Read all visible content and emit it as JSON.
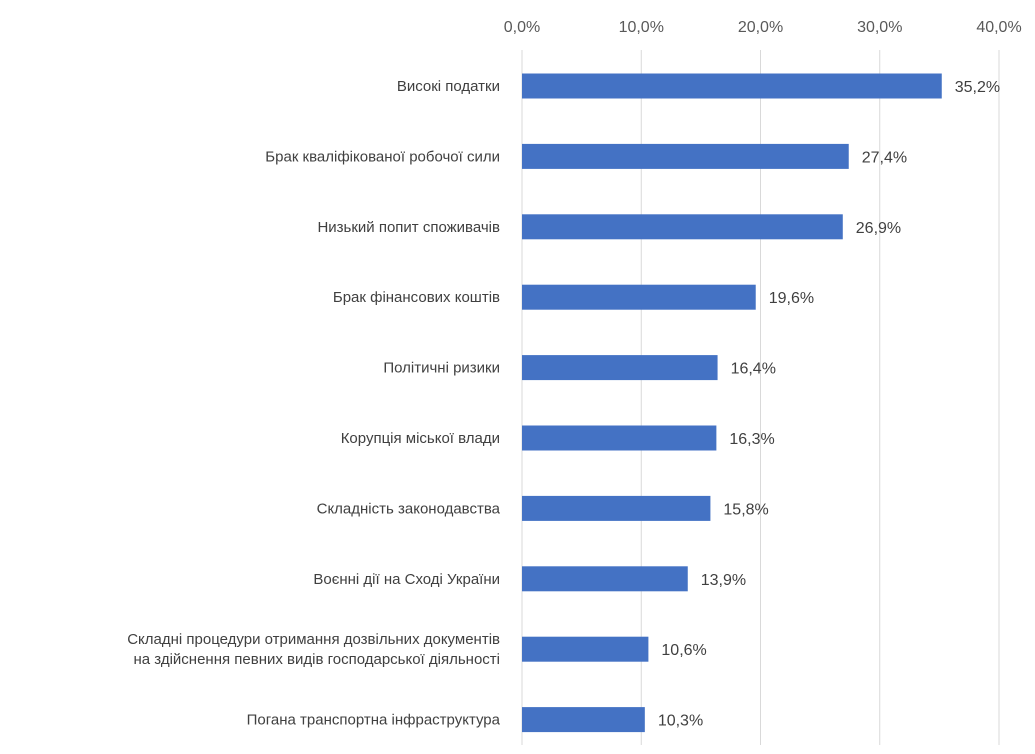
{
  "chart_data": {
    "type": "bar",
    "orientation": "horizontal",
    "categories": [
      "Високі податки",
      "Брак кваліфікованої робочої сили",
      "Низький попит споживачів",
      "Брак фінансових коштів",
      "Політичні ризики",
      "Корупція міської влади",
      "Складність законодавства",
      "Воєнні дії на Сході України",
      "Складні процедури отримання дозвільних документів\nна здійснення певних видів господарської діяльності",
      "Погана транспортна інфраструктура"
    ],
    "values": [
      35.2,
      27.4,
      26.9,
      19.6,
      16.4,
      16.3,
      15.8,
      13.9,
      10.6,
      10.3
    ],
    "data_labels": [
      "35,2%",
      "27,4%",
      "26,9%",
      "19,6%",
      "16,4%",
      "16,3%",
      "15,8%",
      "13,9%",
      "10,6%",
      "10,3%"
    ],
    "x_ticks": [
      0,
      10,
      20,
      30,
      40
    ],
    "x_tick_labels": [
      "0,0%",
      "10,0%",
      "20,0%",
      "30,0%",
      "40,0%"
    ],
    "xlim": [
      0,
      40
    ],
    "x_axis_position": "top",
    "grid": true,
    "bar_color": "#4472C4"
  }
}
